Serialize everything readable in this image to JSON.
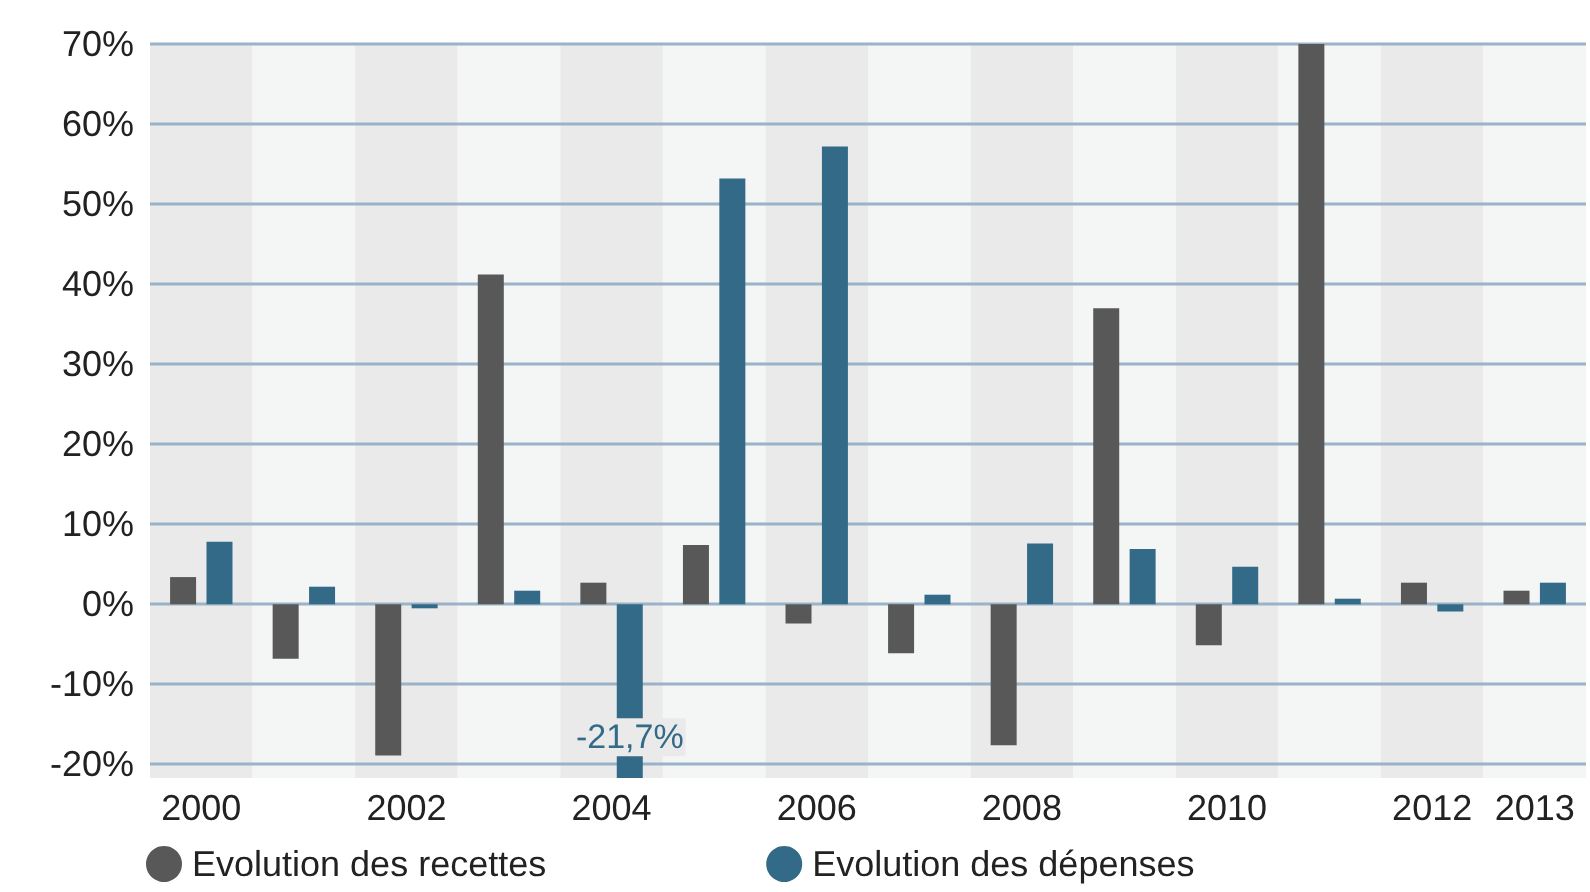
{
  "chart_data": {
    "type": "bar",
    "categories": [
      "2000",
      null,
      "2002",
      null,
      "2004",
      null,
      "2006",
      null,
      "2008",
      null,
      "2010",
      null,
      "2012",
      "2013"
    ],
    "series": [
      {
        "name": "Evolution des recettes",
        "color": "#575857",
        "values": [
          3.4,
          -6.8,
          -18.9,
          41.2,
          2.7,
          7.4,
          -2.4,
          -6.1,
          -17.6,
          37.0,
          -5.1,
          70,
          2.7,
          1.7
        ]
      },
      {
        "name": "Evolution des dépenses",
        "color": "#336a88",
        "values": [
          7.8,
          2.2,
          -0.5,
          1.7,
          -21.7,
          53.2,
          57.2,
          1.2,
          7.6,
          6.9,
          4.7,
          0.7,
          -0.9,
          2.7
        ],
        "value_labels": [
          null,
          null,
          null,
          null,
          "-21,7%",
          null,
          null,
          null,
          null,
          null,
          null,
          null,
          null,
          null
        ]
      }
    ],
    "ylim": [
      -21.7,
      70
    ],
    "yticks": [
      {
        "value": -20,
        "label": "-20%"
      },
      {
        "value": -10,
        "label": "-10%"
      },
      {
        "value": 0,
        "label": "0%"
      },
      {
        "value": 10,
        "label": "10%"
      },
      {
        "value": 20,
        "label": "20%"
      },
      {
        "value": 30,
        "label": "30%"
      },
      {
        "value": 40,
        "label": "40%"
      },
      {
        "value": 50,
        "label": "50%"
      },
      {
        "value": 60,
        "label": "60%"
      },
      {
        "value": 70,
        "label": "70%"
      }
    ],
    "grid": "y",
    "legend": "bottom left"
  }
}
